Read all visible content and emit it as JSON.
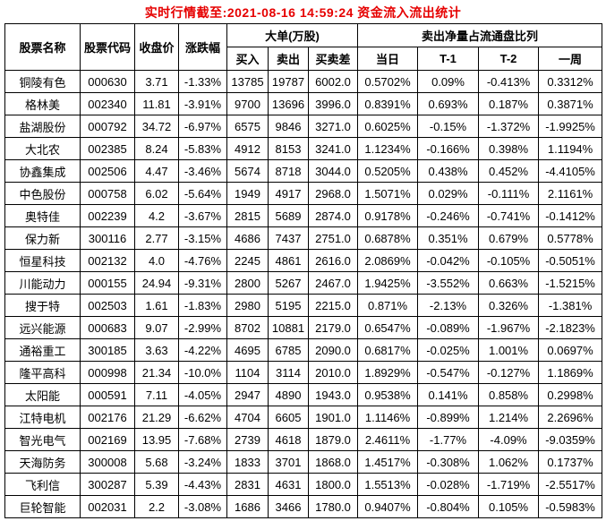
{
  "title": "实时行情截至:2021-08-16 14:59:24 资金流入流出统计",
  "colors": {
    "title_red": "#e60000",
    "stock_name_blue": "#15519e",
    "stock_code_blue": "#1a64c8",
    "border": "#000000",
    "text": "#000000",
    "background": "#ffffff"
  },
  "table": {
    "headers": {
      "stock_name": "股票名称",
      "stock_code": "股票代码",
      "close_price": "收盘价",
      "change_pct": "涨跌幅",
      "big_order_group": "大单(万股)",
      "buy": "买入",
      "sell": "卖出",
      "buy_sell_diff": "买卖差",
      "ratio_group": "卖出净量占流通盘比列",
      "day": "当日",
      "t1": "T-1",
      "t2": "T-2",
      "week": "一周"
    },
    "rows": [
      {
        "name": "铜陵有色",
        "code": "000630",
        "close": "3.71",
        "change": "-1.33%",
        "buy": "13785",
        "sell": "19787",
        "diff": "6002.0",
        "day": "0.5702%",
        "t1": "0.09%",
        "t2": "-0.413%",
        "week": "0.3312%"
      },
      {
        "name": "格林美",
        "code": "002340",
        "close": "11.81",
        "change": "-3.91%",
        "buy": "9700",
        "sell": "13696",
        "diff": "3996.0",
        "day": "0.8391%",
        "t1": "0.693%",
        "t2": "0.187%",
        "week": "0.3871%"
      },
      {
        "name": "盐湖股份",
        "code": "000792",
        "close": "34.72",
        "change": "-6.97%",
        "buy": "6575",
        "sell": "9846",
        "diff": "3271.0",
        "day": "0.6025%",
        "t1": "-0.15%",
        "t2": "-1.372%",
        "week": "-1.9925%"
      },
      {
        "name": "大北农",
        "code": "002385",
        "close": "8.24",
        "change": "-5.83%",
        "buy": "4912",
        "sell": "8153",
        "diff": "3241.0",
        "day": "1.1234%",
        "t1": "-0.166%",
        "t2": "0.398%",
        "week": "1.1194%"
      },
      {
        "name": "协鑫集成",
        "code": "002506",
        "close": "4.47",
        "change": "-3.46%",
        "buy": "5674",
        "sell": "8718",
        "diff": "3044.0",
        "day": "0.5205%",
        "t1": "0.438%",
        "t2": "0.452%",
        "week": "-4.4105%"
      },
      {
        "name": "中色股份",
        "code": "000758",
        "close": "6.02",
        "change": "-5.64%",
        "buy": "1949",
        "sell": "4917",
        "diff": "2968.0",
        "day": "1.5071%",
        "t1": "0.029%",
        "t2": "-0.111%",
        "week": "2.1161%"
      },
      {
        "name": "奥特佳",
        "code": "002239",
        "close": "4.2",
        "change": "-3.67%",
        "buy": "2815",
        "sell": "5689",
        "diff": "2874.0",
        "day": "0.9178%",
        "t1": "-0.246%",
        "t2": "-0.741%",
        "week": "-0.1412%"
      },
      {
        "name": "保力新",
        "code": "300116",
        "close": "2.77",
        "change": "-3.15%",
        "buy": "4686",
        "sell": "7437",
        "diff": "2751.0",
        "day": "0.6878%",
        "t1": "0.351%",
        "t2": "0.679%",
        "week": "0.5778%"
      },
      {
        "name": "恒星科技",
        "code": "002132",
        "close": "4.0",
        "change": "-4.76%",
        "buy": "2245",
        "sell": "4861",
        "diff": "2616.0",
        "day": "2.0869%",
        "t1": "-0.042%",
        "t2": "-0.105%",
        "week": "-0.5051%"
      },
      {
        "name": "川能动力",
        "code": "000155",
        "close": "24.94",
        "change": "-9.31%",
        "buy": "2800",
        "sell": "5267",
        "diff": "2467.0",
        "day": "1.9425%",
        "t1": "-3.552%",
        "t2": "0.663%",
        "week": "-1.5215%"
      },
      {
        "name": "搜于特",
        "code": "002503",
        "close": "1.61",
        "change": "-1.83%",
        "buy": "2980",
        "sell": "5195",
        "diff": "2215.0",
        "day": "0.871%",
        "t1": "-2.13%",
        "t2": "0.326%",
        "week": "-1.381%"
      },
      {
        "name": "远兴能源",
        "code": "000683",
        "close": "9.07",
        "change": "-2.99%",
        "buy": "8702",
        "sell": "10881",
        "diff": "2179.0",
        "day": "0.6547%",
        "t1": "-0.089%",
        "t2": "-1.967%",
        "week": "-2.1823%"
      },
      {
        "name": "通裕重工",
        "code": "300185",
        "close": "3.63",
        "change": "-4.22%",
        "buy": "4695",
        "sell": "6785",
        "diff": "2090.0",
        "day": "0.6817%",
        "t1": "-0.025%",
        "t2": "1.001%",
        "week": "0.0697%"
      },
      {
        "name": "隆平高科",
        "code": "000998",
        "close": "21.34",
        "change": "-10.0%",
        "buy": "1104",
        "sell": "3114",
        "diff": "2010.0",
        "day": "1.8929%",
        "t1": "-0.547%",
        "t2": "-0.127%",
        "week": "1.1869%"
      },
      {
        "name": "太阳能",
        "code": "000591",
        "close": "7.11",
        "change": "-4.05%",
        "buy": "2947",
        "sell": "4890",
        "diff": "1943.0",
        "day": "0.9538%",
        "t1": "0.141%",
        "t2": "0.858%",
        "week": "0.2998%"
      },
      {
        "name": "江特电机",
        "code": "002176",
        "close": "21.29",
        "change": "-6.62%",
        "buy": "4704",
        "sell": "6605",
        "diff": "1901.0",
        "day": "1.1146%",
        "t1": "-0.899%",
        "t2": "1.214%",
        "week": "2.2696%"
      },
      {
        "name": "智光电气",
        "code": "002169",
        "close": "13.95",
        "change": "-7.68%",
        "buy": "2739",
        "sell": "4618",
        "diff": "1879.0",
        "day": "2.4611%",
        "t1": "-1.77%",
        "t2": "-4.09%",
        "week": "-9.0359%"
      },
      {
        "name": "天海防务",
        "code": "300008",
        "close": "5.68",
        "change": "-3.24%",
        "buy": "1833",
        "sell": "3701",
        "diff": "1868.0",
        "day": "1.4517%",
        "t1": "-0.308%",
        "t2": "1.062%",
        "week": "0.1737%"
      },
      {
        "name": "飞利信",
        "code": "300287",
        "close": "5.39",
        "change": "-4.43%",
        "buy": "2831",
        "sell": "4631",
        "diff": "1800.0",
        "day": "1.5513%",
        "t1": "-0.028%",
        "t2": "-1.719%",
        "week": "-2.5517%"
      },
      {
        "name": "巨轮智能",
        "code": "002031",
        "close": "2.2",
        "change": "-3.08%",
        "buy": "1686",
        "sell": "3466",
        "diff": "1780.0",
        "day": "0.9407%",
        "t1": "-0.804%",
        "t2": "0.105%",
        "week": "-0.5983%"
      }
    ]
  }
}
